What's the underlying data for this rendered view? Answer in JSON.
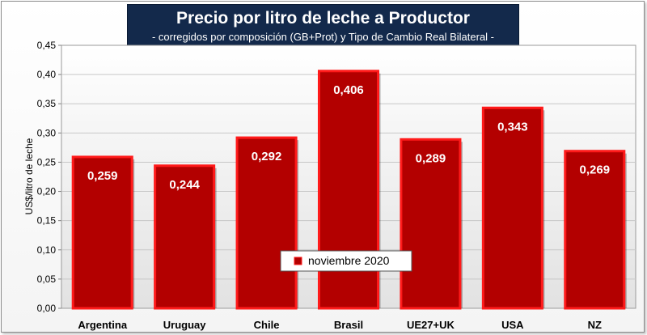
{
  "chart_data": {
    "type": "bar",
    "title": "Precio por litro de leche a Productor",
    "subtitle": "-  corregidos por composición (GB+Prot) y Tipo de Cambio Real Bilateral -",
    "ylabel": "US$/litro de leche",
    "xlabel": "",
    "ylim": [
      0,
      0.45
    ],
    "yticks": [
      "0,00",
      "0,05",
      "0,10",
      "0,15",
      "0,20",
      "0,25",
      "0,30",
      "0,35",
      "0,40",
      "0,45"
    ],
    "categories": [
      "Argentina",
      "Uruguay",
      "Chile",
      "Brasil",
      "UE27+UK",
      "USA",
      "NZ"
    ],
    "series": [
      {
        "name": "noviembre 2020",
        "values": [
          0.259,
          0.244,
          0.292,
          0.406,
          0.289,
          0.343,
          0.269
        ],
        "labels": [
          "0,259",
          "0,244",
          "0,292",
          "0,406",
          "0,289",
          "0,343",
          "0,269"
        ]
      }
    ],
    "grid": true,
    "legend_position": "bottom-center",
    "colors": {
      "bar_fill": "#b30000",
      "bar_border": "#ff1a1a",
      "title_bg": "#13294b"
    }
  }
}
